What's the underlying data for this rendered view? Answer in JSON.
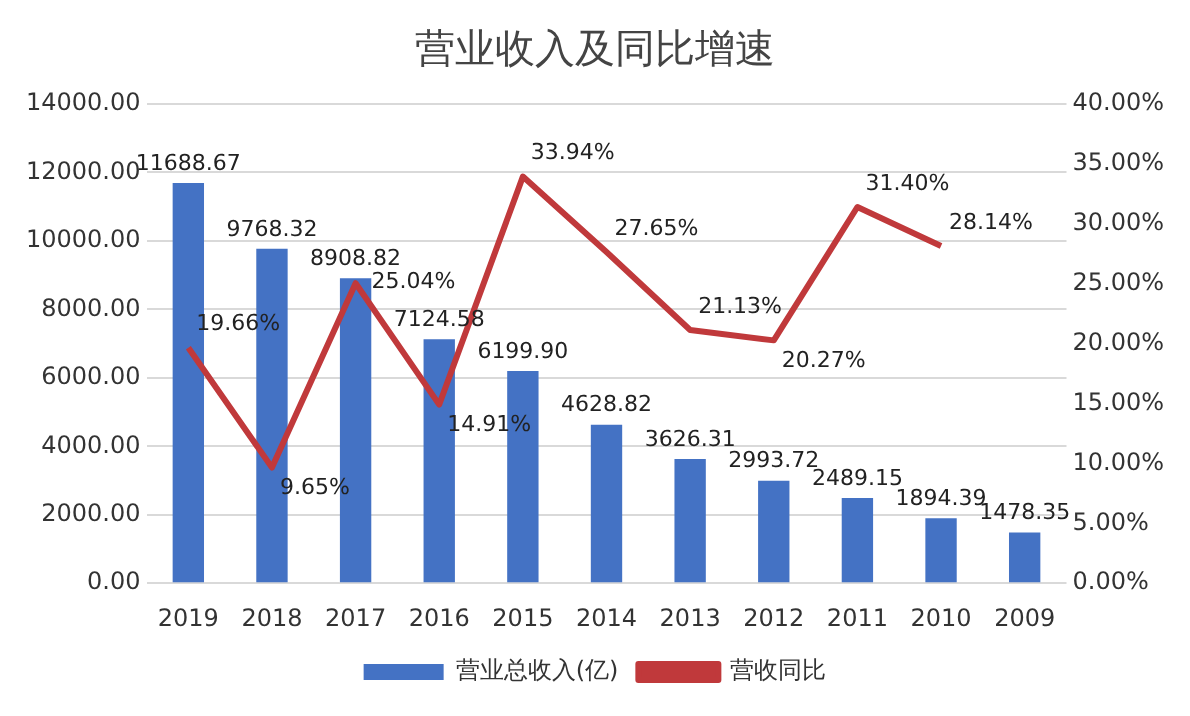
{
  "chart_data": {
    "type": "bar",
    "title": "营业收入及同比增速",
    "categories": [
      "2019",
      "2018",
      "2017",
      "2016",
      "2015",
      "2014",
      "2013",
      "2012",
      "2011",
      "2010",
      "2009"
    ],
    "series": [
      {
        "name": "营业总收入(亿)",
        "color": "#4472c4",
        "values": [
          11688.67,
          9768.32,
          8908.82,
          7124.58,
          6199.9,
          4628.82,
          3626.31,
          2993.72,
          2489.15,
          1894.39,
          1478.35
        ],
        "value_labels": [
          "11688.67",
          "9768.32",
          "8908.82",
          "7124.58",
          "6199.90",
          "4628.82",
          "3626.31",
          "2993.72",
          "2489.15",
          "1894.39",
          "1478.35"
        ]
      },
      {
        "name": "营收同比",
        "type": "line",
        "axis": "y2",
        "color": "#c0393b",
        "values": [
          19.66,
          9.65,
          25.04,
          14.91,
          33.94,
          27.65,
          21.13,
          20.27,
          31.4,
          28.14,
          null
        ],
        "value_labels": [
          "19.66%",
          "9.65%",
          "25.04%",
          "14.91%",
          "33.94%",
          "27.65%",
          "21.13%",
          "20.27%",
          "31.40%",
          "28.14%",
          null
        ]
      }
    ],
    "ylim": [
      0,
      14000
    ],
    "yticks": [
      {
        "value": 0,
        "label": "0.00"
      },
      {
        "value": 2000,
        "label": "2000.00"
      },
      {
        "value": 4000,
        "label": "4000.00"
      },
      {
        "value": 6000,
        "label": "6000.00"
      },
      {
        "value": 8000,
        "label": "8000.00"
      },
      {
        "value": 10000,
        "label": "10000.00"
      },
      {
        "value": 12000,
        "label": "12000.00"
      },
      {
        "value": 14000,
        "label": "14000.00"
      }
    ],
    "y2lim": [
      0,
      40
    ],
    "y2ticks": [
      {
        "value": 0,
        "label": "0.00%"
      },
      {
        "value": 5,
        "label": "5.00%"
      },
      {
        "value": 10,
        "label": "10.00%"
      },
      {
        "value": 15,
        "label": "15.00%"
      },
      {
        "value": 20,
        "label": "20.00%"
      },
      {
        "value": 25,
        "label": "25.00%"
      },
      {
        "value": 30,
        "label": "30.00%"
      },
      {
        "value": 35,
        "label": "35.00%"
      },
      {
        "value": 40,
        "label": "40.00%"
      }
    ],
    "grid": "y",
    "legend": "bottom",
    "marker": "none",
    "line_style": "solid"
  }
}
